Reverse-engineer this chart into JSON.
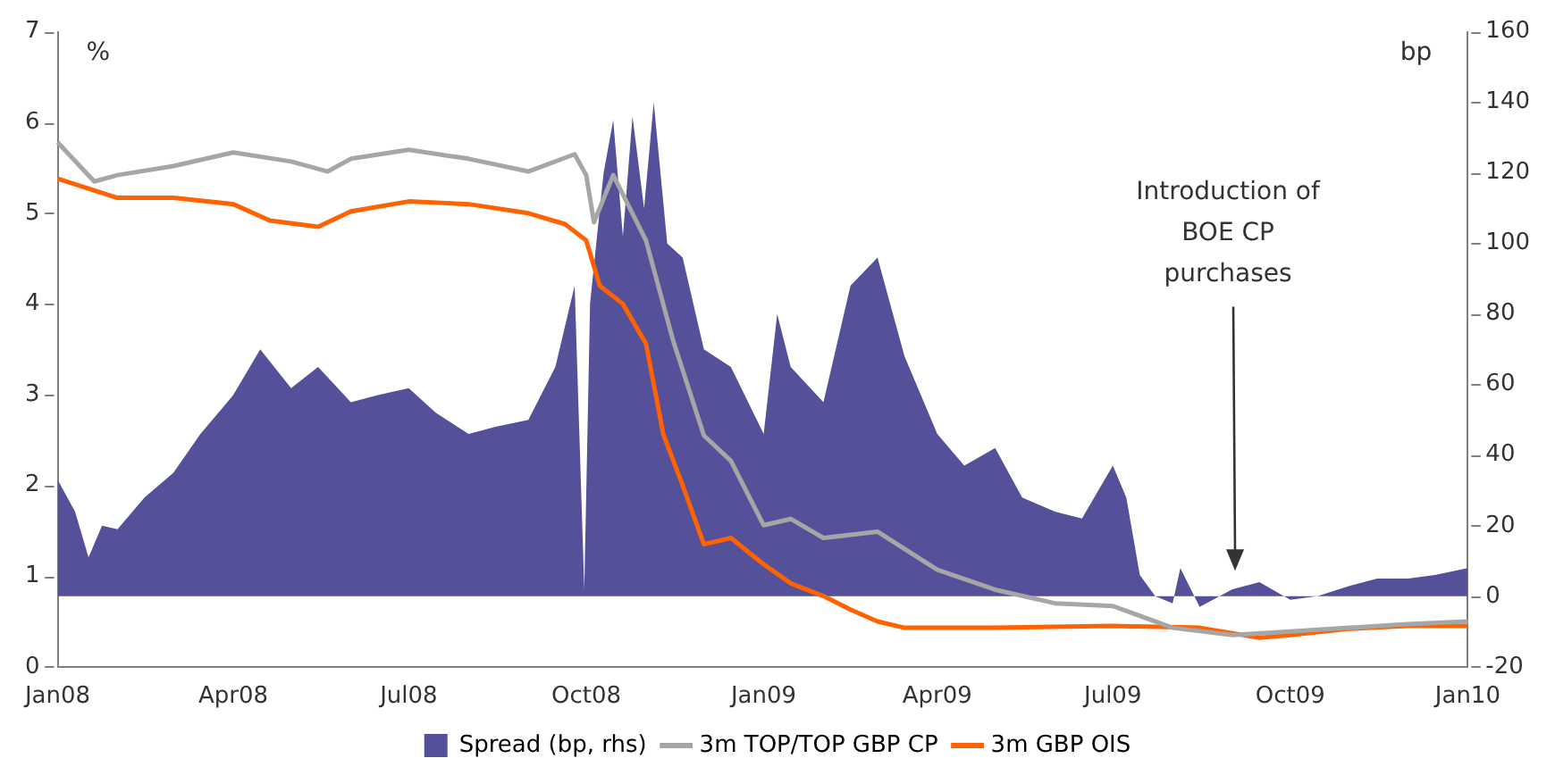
{
  "chart_data": {
    "type": "line",
    "ylabel": "%",
    "y2label": "bp",
    "xlim": [
      "2008-01-01",
      "2010-01-01"
    ],
    "xticks": [
      {
        "value": "2008-01-01",
        "label": "Jan08"
      },
      {
        "value": "2008-04-01",
        "label": "Apr08"
      },
      {
        "value": "2008-07-01",
        "label": "Jul08"
      },
      {
        "value": "2008-10-01",
        "label": "Oct08"
      },
      {
        "value": "2009-01-01",
        "label": "Jan09"
      },
      {
        "value": "2009-04-01",
        "label": "Apr09"
      },
      {
        "value": "2009-07-01",
        "label": "Jul09"
      },
      {
        "value": "2009-10-01",
        "label": "Oct09"
      },
      {
        "value": "2010-01-01",
        "label": "Jan10"
      }
    ],
    "ylim": [
      0,
      7
    ],
    "yticks": [
      0,
      1,
      2,
      3,
      4,
      5,
      6,
      7
    ],
    "y2lim": [
      -20,
      160
    ],
    "y2ticks": [
      -20,
      0,
      20,
      40,
      60,
      80,
      100,
      120,
      140,
      160
    ],
    "grid": false,
    "legend": "bottom",
    "marker": "none",
    "line_style": "solid",
    "series": [
      {
        "name": "Spread (bp, rhs)",
        "type": "area",
        "axis": "y2",
        "color": "#54509a",
        "x": [
          "2008-01-01",
          "2008-01-10",
          "2008-01-17",
          "2008-01-24",
          "2008-02-01",
          "2008-02-15",
          "2008-03-01",
          "2008-03-15",
          "2008-04-01",
          "2008-04-15",
          "2008-05-01",
          "2008-05-15",
          "2008-06-01",
          "2008-06-15",
          "2008-07-01",
          "2008-07-15",
          "2008-08-01",
          "2008-08-15",
          "2008-09-01",
          "2008-09-15",
          "2008-09-25",
          "2008-09-30",
          "2008-10-03",
          "2008-10-10",
          "2008-10-15",
          "2008-10-20",
          "2008-10-25",
          "2008-10-31",
          "2008-11-05",
          "2008-11-12",
          "2008-11-20",
          "2008-12-01",
          "2008-12-15",
          "2009-01-01",
          "2009-01-08",
          "2009-01-15",
          "2009-02-01",
          "2009-02-15",
          "2009-03-01",
          "2009-03-15",
          "2009-04-01",
          "2009-04-15",
          "2009-05-01",
          "2009-05-15",
          "2009-06-01",
          "2009-06-15",
          "2009-07-01",
          "2009-07-08",
          "2009-07-15",
          "2009-07-23",
          "2009-08-01",
          "2009-08-05",
          "2009-08-15",
          "2009-09-01",
          "2009-09-15",
          "2009-10-01",
          "2009-10-15",
          "2009-11-01",
          "2009-11-15",
          "2009-12-01",
          "2009-12-15",
          "2010-01-01"
        ],
        "values": [
          33,
          24,
          11,
          20,
          19,
          28,
          35,
          46,
          57,
          70,
          59,
          65,
          55,
          57,
          59,
          52,
          46,
          48,
          50,
          65,
          88,
          2,
          83,
          120,
          135,
          102,
          136,
          110,
          140,
          100,
          96,
          70,
          65,
          46,
          80,
          65,
          55,
          88,
          96,
          68,
          46,
          37,
          42,
          28,
          24,
          22,
          37,
          28,
          6,
          0,
          -2,
          8,
          -3,
          2,
          4,
          -1,
          0,
          3,
          5,
          5,
          6,
          8
        ]
      },
      {
        "name": "3m TOP/TOP GBP CP",
        "color": "#a6a6a6",
        "x": [
          "2008-01-01",
          "2008-01-20",
          "2008-02-01",
          "2008-03-01",
          "2008-04-01",
          "2008-05-01",
          "2008-05-20",
          "2008-06-01",
          "2008-07-01",
          "2008-08-01",
          "2008-09-01",
          "2008-09-25",
          "2008-10-01",
          "2008-10-05",
          "2008-10-15",
          "2008-11-01",
          "2008-11-15",
          "2008-12-01",
          "2008-12-15",
          "2009-01-01",
          "2009-01-15",
          "2009-02-01",
          "2009-03-01",
          "2009-04-01",
          "2009-05-01",
          "2009-06-01",
          "2009-07-01",
          "2009-08-01",
          "2009-09-01",
          "2009-10-01",
          "2009-11-01",
          "2009-12-01",
          "2010-01-01"
        ],
        "values": [
          5.78,
          5.35,
          5.42,
          5.52,
          5.67,
          5.57,
          5.46,
          5.6,
          5.7,
          5.6,
          5.46,
          5.65,
          5.42,
          4.9,
          5.42,
          4.7,
          3.6,
          2.55,
          2.27,
          1.56,
          1.63,
          1.42,
          1.49,
          1.07,
          0.85,
          0.7,
          0.67,
          0.43,
          0.35,
          0.39,
          0.43,
          0.47,
          0.5
        ]
      },
      {
        "name": "3m GBP OIS",
        "color": "#ff6200",
        "x": [
          "2008-01-01",
          "2008-02-01",
          "2008-03-01",
          "2008-04-01",
          "2008-04-20",
          "2008-05-15",
          "2008-06-01",
          "2008-07-01",
          "2008-08-01",
          "2008-09-01",
          "2008-09-20",
          "2008-10-01",
          "2008-10-08",
          "2008-10-20",
          "2008-11-01",
          "2008-11-10",
          "2008-11-20",
          "2008-12-01",
          "2008-12-15",
          "2009-01-01",
          "2009-01-15",
          "2009-02-01",
          "2009-02-15",
          "2009-03-01",
          "2009-03-15",
          "2009-05-01",
          "2009-07-01",
          "2009-08-15",
          "2009-09-15",
          "2009-10-01",
          "2009-11-01",
          "2009-12-01",
          "2010-01-01"
        ],
        "values": [
          5.38,
          5.17,
          5.17,
          5.1,
          4.92,
          4.85,
          5.02,
          5.13,
          5.1,
          5.0,
          4.88,
          4.7,
          4.2,
          4.0,
          3.56,
          2.56,
          2.0,
          1.35,
          1.42,
          1.13,
          0.92,
          0.78,
          0.63,
          0.5,
          0.43,
          0.43,
          0.45,
          0.43,
          0.32,
          0.35,
          0.42,
          0.45,
          0.45
        ]
      }
    ],
    "annotations": [
      "Introduction of\nBOE CP\npurchases"
    ]
  }
}
